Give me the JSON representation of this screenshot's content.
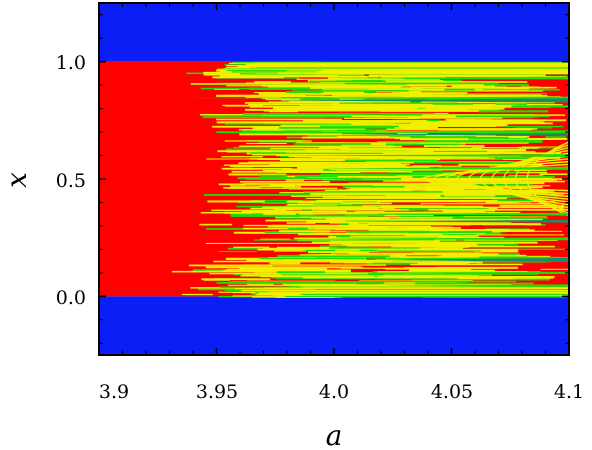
{
  "chart_data": {
    "type": "heatmap",
    "xlabel": "a",
    "ylabel": "x",
    "xlim": [
      3.9,
      4.1
    ],
    "ylim": [
      -0.25,
      1.25
    ],
    "xticks": [
      {
        "value": 3.9,
        "label": "3.9"
      },
      {
        "value": 3.95,
        "label": "3.95"
      },
      {
        "value": 4.0,
        "label": "4.0"
      },
      {
        "value": 4.05,
        "label": "4.05"
      },
      {
        "value": 4.1,
        "label": "4.1"
      }
    ],
    "yticks": [
      {
        "value": 0.0,
        "label": "0.0"
      },
      {
        "value": 0.5,
        "label": "0.5"
      },
      {
        "value": 1.0,
        "label": "1.0"
      }
    ],
    "colors": {
      "outside": "#0a1ef5",
      "chaotic": "#ff0000",
      "yellow": "#f0f000",
      "green": "#22dd00",
      "teal": "#1f8a6a"
    },
    "regions": [
      {
        "name": "blue-top",
        "a": [
          3.9,
          4.1
        ],
        "x": [
          1.0,
          1.25
        ],
        "color": "#0a1ef5"
      },
      {
        "name": "blue-bottom",
        "a": [
          3.9,
          4.1
        ],
        "x": [
          -0.25,
          0.0
        ],
        "color": "#0a1ef5"
      },
      {
        "name": "red-core",
        "a": [
          3.9,
          4.1
        ],
        "x": [
          0.0,
          1.0
        ],
        "color": "#ff0000"
      }
    ],
    "bands": [
      {
        "a_start": 3.935,
        "x": 0.845,
        "w": 0.012,
        "color": "#22dd00"
      },
      {
        "a_start": 3.97,
        "x": 0.835,
        "w": 0.018,
        "color": "#1f8a6a"
      },
      {
        "a_start": 3.965,
        "x": 0.7,
        "w": 0.015,
        "color": "#22dd00"
      },
      {
        "a_start": 4.0,
        "x": 0.69,
        "w": 0.012,
        "color": "#1f8a6a"
      },
      {
        "a_start": 3.975,
        "x": 0.6,
        "w": 0.012,
        "color": "#22dd00"
      },
      {
        "a_start": 3.99,
        "x": 0.545,
        "w": 0.012,
        "color": "#22dd00"
      },
      {
        "a_start": 3.985,
        "x": 0.35,
        "w": 0.012,
        "color": "#22dd00"
      },
      {
        "a_start": 4.0,
        "x": 0.32,
        "w": 0.012,
        "color": "#1f8a6a"
      },
      {
        "a_start": 3.985,
        "x": 0.245,
        "w": 0.012,
        "color": "#22dd00"
      },
      {
        "a_start": 3.98,
        "x": 0.16,
        "w": 0.015,
        "color": "#22dd00"
      },
      {
        "a_start": 4.02,
        "x": 0.155,
        "w": 0.018,
        "color": "#1f8a6a"
      },
      {
        "a_start": 3.985,
        "x": 0.1,
        "w": 0.01,
        "color": "#22dd00"
      },
      {
        "a_start": 4.0,
        "x": 0.93,
        "w": 0.012,
        "color": "#22dd00"
      },
      {
        "a_start": 4.02,
        "x": 0.045,
        "w": 0.012,
        "color": "#22dd00"
      }
    ]
  }
}
